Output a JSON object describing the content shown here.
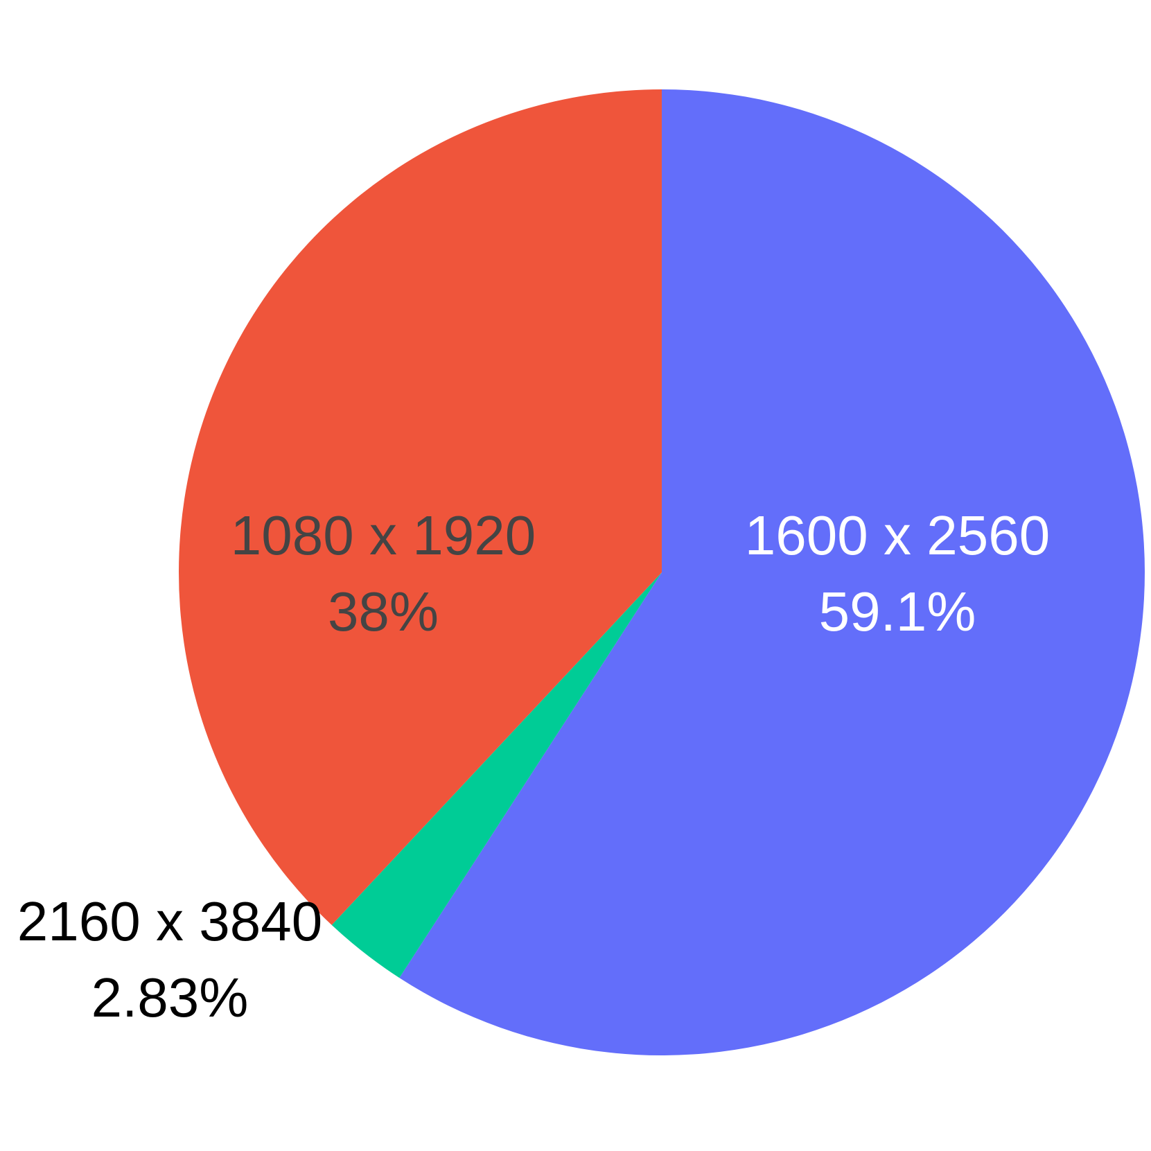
{
  "chart_data": {
    "type": "pie",
    "title": "",
    "start": "top",
    "direction": "clockwise",
    "slices": [
      {
        "label": "1600 x 2560",
        "value": 59.1,
        "value_text": "59.1%",
        "color": "#636efa",
        "label_color": "#ffffff",
        "label_position": "inside"
      },
      {
        "label": "2160 x 3840",
        "value": 2.83,
        "value_text": "2.83%",
        "color": "#00cc96",
        "label_color": "#000000",
        "label_position": "outside"
      },
      {
        "label": "1080 x 1920",
        "value": 38.0,
        "value_text": "38%",
        "color": "#ef553b",
        "label_color": "#444444",
        "label_position": "inside"
      }
    ]
  }
}
